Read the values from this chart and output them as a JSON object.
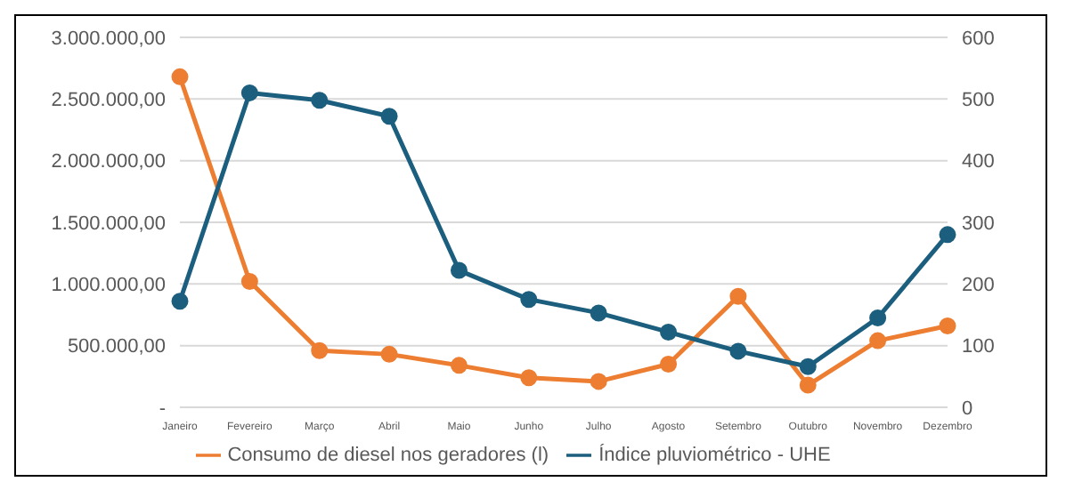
{
  "chart_data": {
    "type": "line",
    "categories": [
      "Janeiro",
      "Fevereiro",
      "Março",
      "Abril",
      "Maio",
      "Junho",
      "Julho",
      "Agosto",
      "Setembro",
      "Outubro",
      "Novembro",
      "Dezembro"
    ],
    "series": [
      {
        "name": "Consumo de diesel nos geradores (l)",
        "color": "#ed7d31",
        "values": [
          2680000,
          1020000,
          460000,
          430000,
          340000,
          240000,
          210000,
          350000,
          900000,
          180000,
          540000,
          660000
        ]
      },
      {
        "name": "Índice pluviométrico - UHE",
        "color": "#1b5e7e",
        "axis": "y2",
        "values": [
          172,
          510,
          498,
          472,
          222,
          175,
          153,
          122,
          91,
          66,
          145,
          280
        ]
      }
    ],
    "ylim": [
      0,
      3000000
    ],
    "yticks": [
      {
        "value": 0,
        "label": "-"
      },
      {
        "value": 500000,
        "label": "500.000,00"
      },
      {
        "value": 1000000,
        "label": "1.000.000,00"
      },
      {
        "value": 1500000,
        "label": "1.500.000,00"
      },
      {
        "value": 2000000,
        "label": "2.000.000,00"
      },
      {
        "value": 2500000,
        "label": "2.500.000,00"
      },
      {
        "value": 3000000,
        "label": "3.000.000,00"
      }
    ],
    "y2lim": [
      0,
      600
    ],
    "y2ticks": [
      0,
      100,
      200,
      300,
      400,
      500,
      600
    ],
    "grid": "y",
    "legend": "bottom",
    "marker": "circle",
    "line_style": "solid"
  }
}
